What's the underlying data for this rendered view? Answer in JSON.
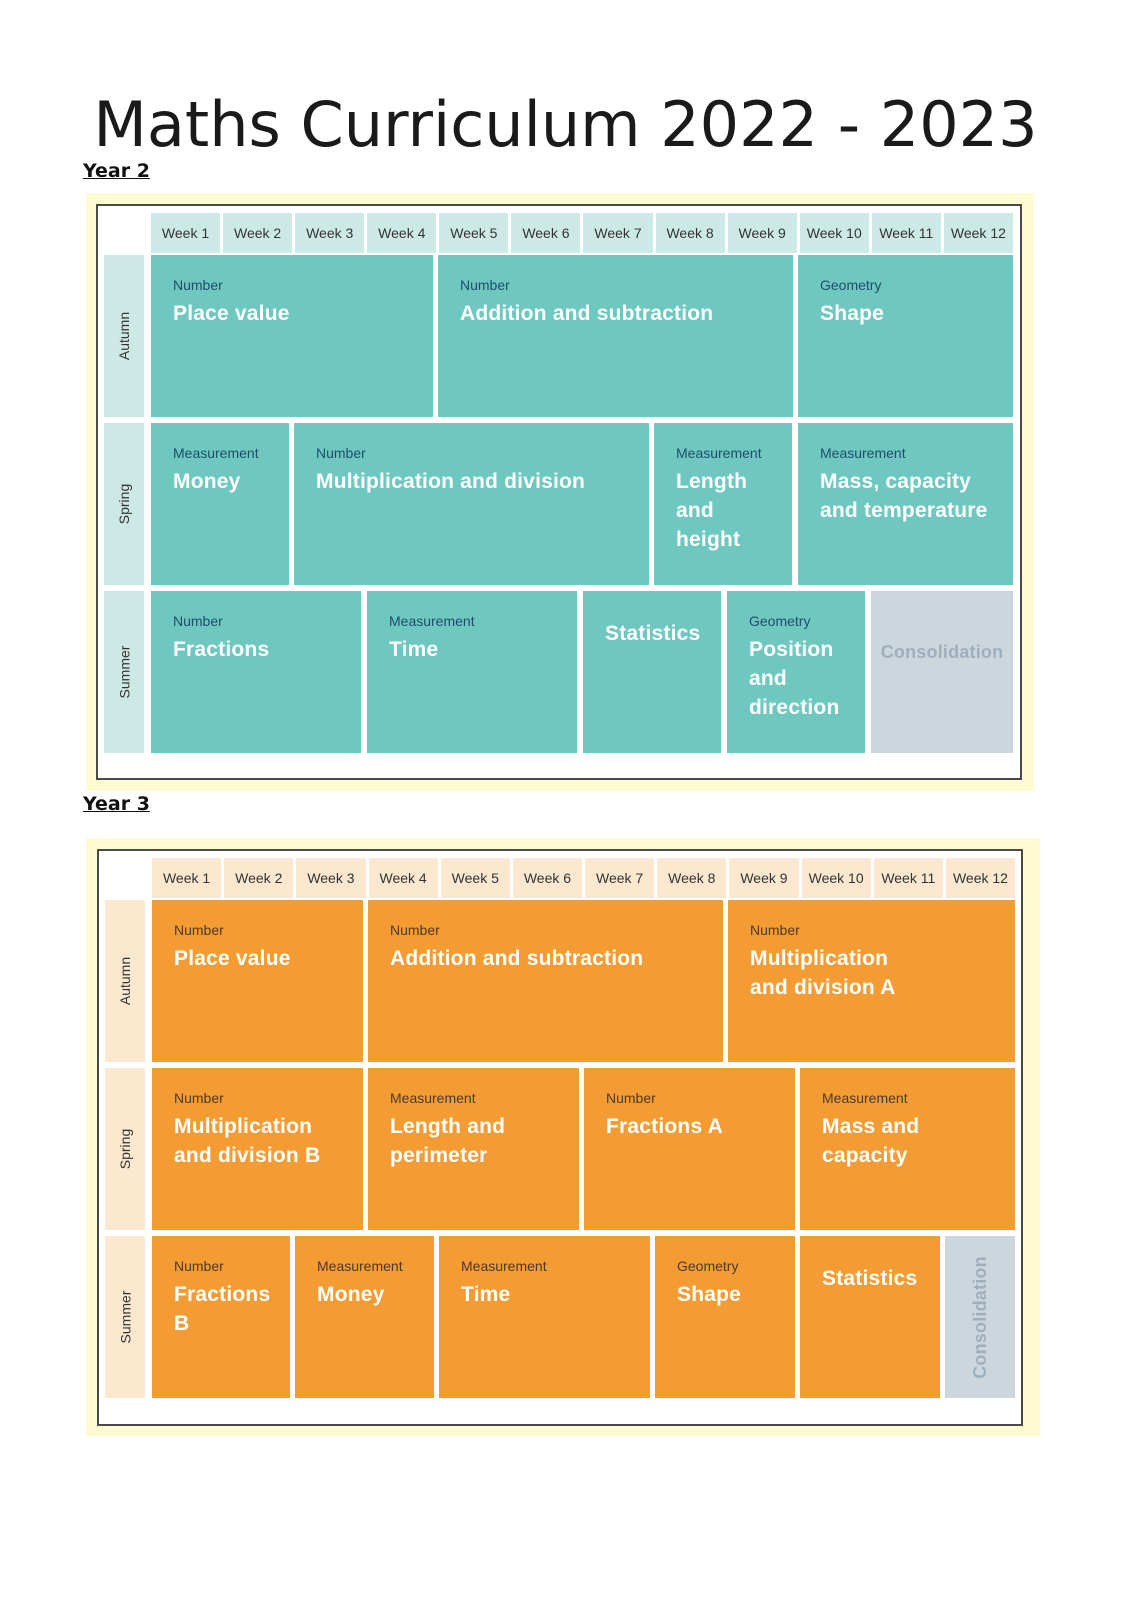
{
  "title": "Maths Curriculum 2022 - 2023",
  "years": [
    {
      "heading": "Year 2",
      "weeks": [
        "Week 1",
        "Week 2",
        "Week 3",
        "Week 4",
        "Week 5",
        "Week 6",
        "Week 7",
        "Week 8",
        "Week 9",
        "Week 10",
        "Week 11",
        "Week 12"
      ],
      "terms": [
        {
          "name": "Autumn",
          "blocks": [
            {
              "category": "Number",
              "topic": "Place value"
            },
            {
              "category": "Number",
              "topic": "Addition and subtraction"
            },
            {
              "category": "Geometry",
              "topic": "Shape"
            }
          ]
        },
        {
          "name": "Spring",
          "blocks": [
            {
              "category": "Measurement",
              "topic": "Money"
            },
            {
              "category": "Number",
              "topic": "Multiplication and division"
            },
            {
              "category": "Measurement",
              "topic": "Length and height"
            },
            {
              "category": "Measurement",
              "topic": "Mass, capacity and temperature"
            }
          ]
        },
        {
          "name": "Summer",
          "blocks": [
            {
              "category": "Number",
              "topic": "Fractions"
            },
            {
              "category": "Measurement",
              "topic": "Time"
            },
            {
              "category": "",
              "topic": "Statistics"
            },
            {
              "category": "Geometry",
              "topic": "Position and direction"
            },
            {
              "category": "",
              "topic": "Consolidation"
            }
          ]
        }
      ]
    },
    {
      "heading": "Year 3",
      "weeks": [
        "Week 1",
        "Week 2",
        "Week 3",
        "Week 4",
        "Week 5",
        "Week 6",
        "Week 7",
        "Week 8",
        "Week 9",
        "Week 10",
        "Week 11",
        "Week 12"
      ],
      "terms": [
        {
          "name": "Autumn",
          "blocks": [
            {
              "category": "Number",
              "topic": "Place value"
            },
            {
              "category": "Number",
              "topic": "Addition and subtraction"
            },
            {
              "category": "Number",
              "topic": "Multiplication and division A"
            }
          ]
        },
        {
          "name": "Spring",
          "blocks": [
            {
              "category": "Number",
              "topic": "Multiplication and division B"
            },
            {
              "category": "Measurement",
              "topic": "Length and perimeter"
            },
            {
              "category": "Number",
              "topic": "Fractions A"
            },
            {
              "category": "Measurement",
              "topic": "Mass and capacity"
            }
          ]
        },
        {
          "name": "Summer",
          "blocks": [
            {
              "category": "Number",
              "topic": "Fractions B"
            },
            {
              "category": "Measurement",
              "topic": "Money"
            },
            {
              "category": "Measurement",
              "topic": "Time"
            },
            {
              "category": "Geometry",
              "topic": "Shape"
            },
            {
              "category": "",
              "topic": "Statistics"
            },
            {
              "category": "",
              "topic": "Consolidation"
            }
          ]
        }
      ]
    }
  ]
}
